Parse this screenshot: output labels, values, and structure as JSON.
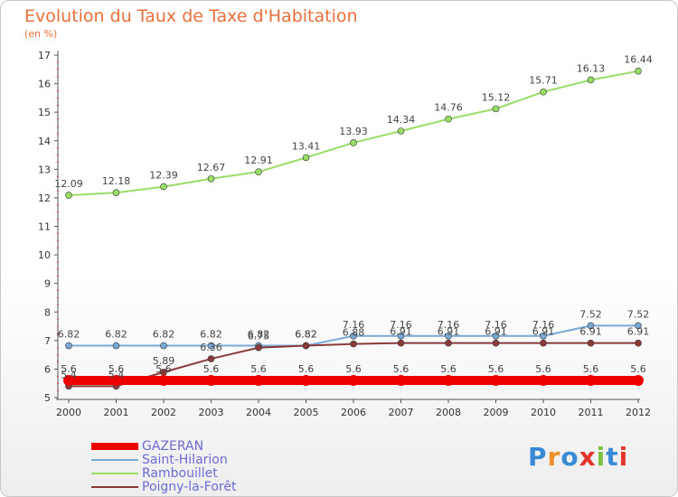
{
  "title": "Evolution du Taux de Taxe d'Habitation",
  "unit_label": "(en %)",
  "logo": {
    "text": "Proxiti",
    "colors": [
      "#3a8bd6",
      "#f0902a",
      "#3a8bd6",
      "#e2352e",
      "#7cc242",
      "#3a8bd6",
      "#e2352e"
    ]
  },
  "chart_data": {
    "type": "line",
    "title": "Evolution du Taux de Taxe d'Habitation",
    "ylabel": "(en %)",
    "xlabel": "",
    "categories": [
      "2000",
      "2001",
      "2002",
      "2003",
      "2004",
      "2005",
      "2006",
      "2007",
      "2008",
      "2009",
      "2010",
      "2011",
      "2012"
    ],
    "ylim": [
      5,
      17
    ],
    "yticks": [
      5,
      6,
      7,
      8,
      9,
      10,
      11,
      12,
      13,
      14,
      15,
      16,
      17
    ],
    "grid": false,
    "legend_position": "bottom-left",
    "series": [
      {
        "name": "GAZERAN",
        "color": "#ee0000",
        "values": [
          5.6,
          5.6,
          5.6,
          5.6,
          5.6,
          5.6,
          5.6,
          5.6,
          5.6,
          5.6,
          5.6,
          5.6,
          5.6
        ],
        "labels": [
          "5.6",
          "5.6",
          "5.6",
          "5.6",
          "5.6",
          "5.6",
          "5.6",
          "5.6",
          "5.6",
          "5.6",
          "5.6",
          "5.6",
          "5.6"
        ]
      },
      {
        "name": "Saint-Hilarion",
        "color": "#7aaad6",
        "values": [
          6.82,
          6.82,
          6.82,
          6.82,
          6.82,
          6.82,
          7.16,
          7.16,
          7.16,
          7.16,
          7.16,
          7.52,
          7.52
        ],
        "labels": [
          "6.82",
          "6.82",
          "6.82",
          "6.82",
          "6.82",
          "6.82",
          "7.16",
          "7.16",
          "7.16",
          "7.16",
          "7.16",
          "7.52",
          "7.52"
        ]
      },
      {
        "name": "Rambouillet",
        "color": "#99dd66",
        "values": [
          12.09,
          12.18,
          12.39,
          12.67,
          12.91,
          13.41,
          13.93,
          14.34,
          14.76,
          15.12,
          15.71,
          16.13,
          16.44
        ],
        "labels": [
          "12.09",
          "12.18",
          "12.39",
          "12.67",
          "12.91",
          "13.41",
          "13.93",
          "14.34",
          "14.76",
          "15.12",
          "15.71",
          "16.13",
          "16.44"
        ]
      },
      {
        "name": "Poigny-la-Forêt",
        "color": "#8b3a3a",
        "values": [
          5.4,
          5.4,
          5.89,
          6.36,
          6.75,
          6.82,
          6.88,
          6.91,
          6.91,
          6.91,
          6.91,
          6.91,
          6.91
        ],
        "labels": [
          "5.4",
          "5.4",
          "5.89",
          "6.36",
          "6.75",
          "6.82",
          "6.88",
          "6.91",
          "6.91",
          "6.91",
          "6.91",
          "6.91",
          "6.91"
        ]
      }
    ]
  }
}
